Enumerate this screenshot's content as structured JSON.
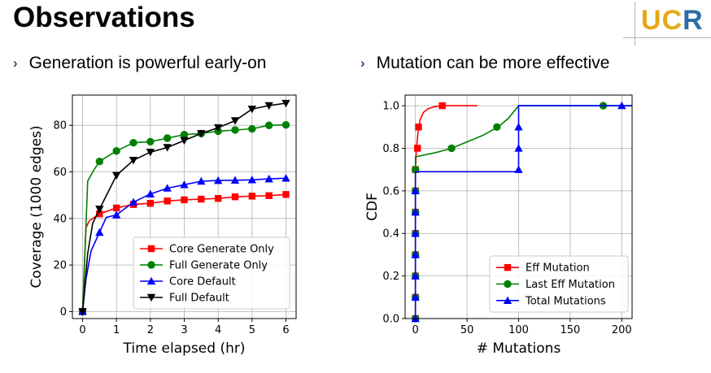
{
  "slide": {
    "title": "Observations",
    "logo": {
      "u": "U",
      "c": "C",
      "r": "R"
    },
    "bullets": [
      "Generation is powerful early-on",
      "Mutation can be more effective"
    ],
    "bullet_mark": "›"
  },
  "chart_data": [
    {
      "type": "line",
      "xlabel": "Time elapsed (hr)",
      "ylabel": "Coverage (1000 edges)",
      "xlim": [
        -0.3,
        6.3
      ],
      "ylim": [
        -3,
        93
      ],
      "xticks": [
        0,
        1,
        2,
        3,
        4,
        5,
        6
      ],
      "yticks": [
        0,
        20,
        40,
        60,
        80
      ],
      "grid": true,
      "legend_position": "lower-right",
      "series": [
        {
          "name": "Core  Generate Only",
          "color": "#ff0000",
          "marker": "square",
          "x": [
            0,
            0.1,
            0.2,
            0.5,
            1,
            1.5,
            2,
            2.5,
            3,
            3.5,
            4,
            4.5,
            5,
            5.5,
            6
          ],
          "y": [
            0,
            36,
            39,
            42,
            44.5,
            46,
            46.5,
            47.5,
            48,
            48.3,
            48.6,
            49.3,
            49.6,
            49.8,
            50.3
          ],
          "markers_x": [
            0,
            0.5,
            1,
            1.5,
            2,
            2.5,
            3,
            3.5,
            4,
            4.5,
            5,
            5.5,
            6
          ],
          "markers_y": [
            0,
            42,
            44.5,
            46,
            46.5,
            47.5,
            48,
            48.3,
            48.6,
            49.3,
            49.6,
            49.8,
            50.3
          ]
        },
        {
          "name": "Full  Generate Only",
          "color": "#008000",
          "marker": "circle",
          "x": [
            0,
            0.15,
            0.3,
            0.5,
            1,
            1.5,
            2,
            2.5,
            3,
            3.5,
            4,
            4.5,
            5,
            5.5,
            6
          ],
          "y": [
            0,
            56,
            60,
            64.5,
            69,
            72.5,
            73,
            74.5,
            76,
            76.5,
            77.5,
            78,
            78.5,
            80,
            80.2
          ],
          "markers_x": [
            0,
            0.5,
            1,
            1.5,
            2,
            2.5,
            3,
            3.5,
            4,
            4.5,
            5,
            5.5,
            6
          ],
          "markers_y": [
            0,
            64.5,
            69,
            72.5,
            73,
            74.5,
            76,
            76.5,
            77.5,
            78,
            78.5,
            80,
            80.2
          ]
        },
        {
          "name": "Core  Default",
          "color": "#0000ff",
          "marker": "triangle-up",
          "x": [
            0,
            0.1,
            0.25,
            0.5,
            0.7,
            1,
            1.5,
            2,
            2.5,
            3,
            3.5,
            4,
            4.5,
            5,
            5.5,
            6
          ],
          "y": [
            0,
            14,
            26,
            34,
            40.5,
            41.5,
            47,
            50.5,
            53,
            54.5,
            56,
            56.3,
            56.4,
            56.6,
            57,
            57.3
          ],
          "markers_x": [
            0,
            0.5,
            1,
            1.5,
            2,
            2.5,
            3,
            3.5,
            4,
            4.5,
            5,
            5.5,
            6
          ],
          "markers_y": [
            0,
            34,
            41.5,
            47,
            50.5,
            53,
            54.5,
            56,
            56.3,
            56.4,
            56.6,
            57,
            57.3
          ]
        },
        {
          "name": "Full  Default",
          "color": "#000000",
          "marker": "triangle-down",
          "x": [
            0,
            0.15,
            0.3,
            0.5,
            1,
            1.5,
            2,
            2.5,
            3,
            3.5,
            4,
            4.5,
            5,
            5.5,
            6
          ],
          "y": [
            0,
            25,
            38,
            44,
            58.5,
            65,
            68.5,
            70.5,
            73.5,
            76.5,
            79,
            82,
            87,
            88.5,
            89.5
          ],
          "markers_x": [
            0,
            0.5,
            1,
            1.5,
            2,
            2.5,
            3,
            3.5,
            4,
            4.5,
            5,
            5.5,
            6
          ],
          "markers_y": [
            0,
            44,
            58.5,
            65,
            68.5,
            70.5,
            73.5,
            76.5,
            79,
            82,
            87,
            88.5,
            89.5
          ]
        }
      ]
    },
    {
      "type": "line",
      "xlabel": "# Mutations",
      "ylabel": "CDF",
      "xlim": [
        -10,
        210
      ],
      "ylim": [
        0,
        1.05
      ],
      "xticks": [
        0,
        50,
        100,
        150,
        200
      ],
      "yticks": [
        "0.0",
        "0.2",
        "0.4",
        "0.6",
        "0.8",
        "1.0"
      ],
      "grid": true,
      "legend_position": "lower-right",
      "series": [
        {
          "name": "Eff Mutation",
          "color": "#ff0000",
          "marker": "square",
          "x": [
            0,
            0,
            1,
            2,
            3,
            5,
            8,
            12,
            18,
            25,
            35,
            50,
            60
          ],
          "y": [
            0,
            0.7,
            0.8,
            0.85,
            0.9,
            0.94,
            0.97,
            0.985,
            0.995,
            1.0,
            1.0,
            1.0,
            1.0
          ],
          "markers_x": [
            0,
            0,
            0,
            0,
            0,
            0,
            0,
            0,
            2,
            3,
            26
          ],
          "markers_y": [
            0,
            0.1,
            0.2,
            0.3,
            0.4,
            0.5,
            0.6,
            0.7,
            0.8,
            0.9,
            1.0
          ]
        },
        {
          "name": "Last Eff Mutation",
          "color": "#008000",
          "marker": "circle",
          "x": [
            0,
            0,
            5,
            20,
            35,
            50,
            65,
            80,
            90,
            100,
            150,
            182,
            210
          ],
          "y": [
            0,
            0.76,
            0.765,
            0.78,
            0.8,
            0.83,
            0.86,
            0.9,
            0.94,
            1.0,
            1.0,
            1.0,
            1.0
          ],
          "markers_x": [
            0,
            0,
            0,
            0,
            0,
            0,
            0,
            0,
            35,
            79,
            182
          ],
          "markers_y": [
            0,
            0.1,
            0.2,
            0.3,
            0.4,
            0.5,
            0.6,
            0.7,
            0.8,
            0.9,
            1.0
          ]
        },
        {
          "name": "Total Mutations",
          "color": "#0000ff",
          "marker": "triangle-up",
          "x": [
            0,
            0,
            100,
            100,
            210
          ],
          "y": [
            0,
            0.69,
            0.69,
            1.0,
            1.0
          ],
          "markers_x": [
            0,
            0,
            0,
            0,
            0,
            0,
            0,
            100,
            100,
            100,
            200
          ],
          "markers_y": [
            0,
            0.1,
            0.2,
            0.3,
            0.4,
            0.5,
            0.6,
            0.7,
            0.8,
            0.9,
            1.0
          ]
        }
      ]
    }
  ]
}
